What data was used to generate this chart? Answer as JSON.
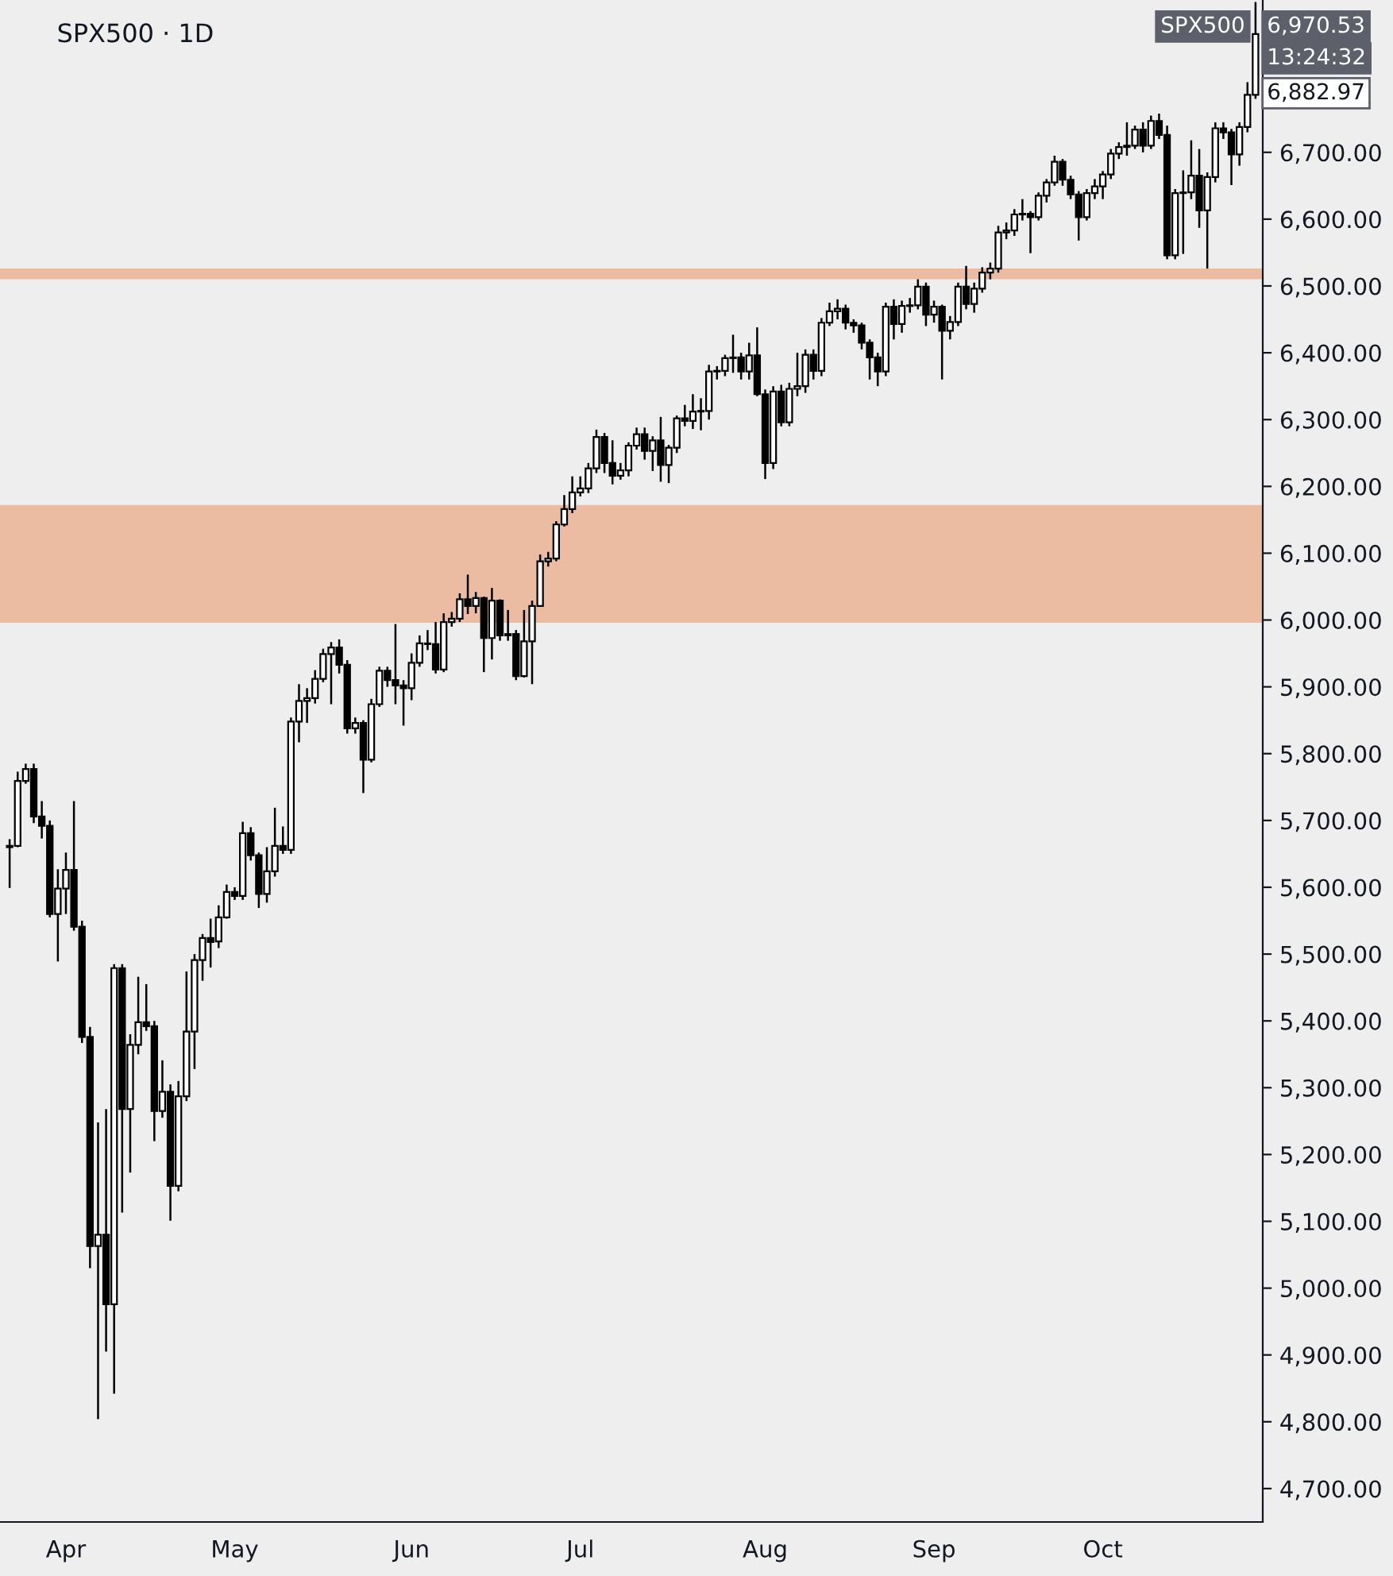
{
  "chart_data": {
    "type": "candlestick",
    "title": "SPX500 · 1D",
    "categories": [
      null,
      null,
      null,
      null,
      null,
      null,
      null,
      "Apr",
      null,
      null,
      null,
      null,
      null,
      null,
      null,
      null,
      null,
      null,
      null,
      null,
      null,
      null,
      null,
      null,
      null,
      null,
      null,
      null,
      "May",
      null,
      null,
      null,
      null,
      null,
      null,
      null,
      null,
      null,
      null,
      null,
      null,
      null,
      null,
      null,
      null,
      null,
      null,
      null,
      null,
      null,
      "Jun",
      null,
      null,
      null,
      null,
      null,
      null,
      null,
      null,
      null,
      null,
      null,
      null,
      null,
      null,
      null,
      null,
      null,
      null,
      null,
      null,
      "Jul",
      null,
      null,
      null,
      null,
      null,
      null,
      null,
      null,
      null,
      null,
      null,
      null,
      null,
      null,
      null,
      null,
      null,
      null,
      null,
      null,
      null,
      null,
      "Aug",
      null,
      null,
      null,
      null,
      null,
      null,
      null,
      null,
      null,
      null,
      null,
      null,
      null,
      null,
      null,
      null,
      null,
      null,
      null,
      null,
      "Sep",
      null,
      null,
      null,
      null,
      null,
      null,
      null,
      null,
      null,
      null,
      null,
      null,
      null,
      null,
      null,
      null,
      null,
      null,
      null,
      null,
      "Oct",
      null,
      null,
      null,
      null,
      null,
      null,
      null,
      null,
      null,
      null,
      null,
      null,
      null,
      null,
      null,
      null,
      null,
      null,
      null
    ],
    "ohlc": [
      [
        5660,
        5672,
        5599,
        5662
      ],
      [
        5662,
        5773,
        5660,
        5759
      ],
      [
        5759,
        5785,
        5755,
        5777
      ],
      [
        5777,
        5785,
        5696,
        5706
      ],
      [
        5706,
        5729,
        5673,
        5692
      ],
      [
        5692,
        5700,
        5555,
        5560
      ],
      [
        5560,
        5627,
        5489,
        5598
      ],
      [
        5598,
        5652,
        5560,
        5626
      ],
      [
        5626,
        5729,
        5535,
        5541
      ],
      [
        5541,
        5550,
        5367,
        5376
      ],
      [
        5376,
        5391,
        5030,
        5063
      ],
      [
        5063,
        5248,
        4804,
        5080
      ],
      [
        5080,
        5268,
        4905,
        4976
      ],
      [
        4976,
        5485,
        4842,
        5479
      ],
      [
        5479,
        5485,
        5113,
        5268
      ],
      [
        5268,
        5380,
        5173,
        5364
      ],
      [
        5364,
        5466,
        5350,
        5398
      ],
      [
        5398,
        5455,
        5385,
        5392
      ],
      [
        5392,
        5400,
        5220,
        5265
      ],
      [
        5265,
        5341,
        5255,
        5294
      ],
      [
        5294,
        5305,
        5101,
        5153
      ],
      [
        5153,
        5310,
        5145,
        5287
      ],
      [
        5287,
        5474,
        5280,
        5384
      ],
      [
        5384,
        5500,
        5328,
        5491
      ],
      [
        5491,
        5530,
        5460,
        5524
      ],
      [
        5524,
        5553,
        5480,
        5518
      ],
      [
        5519,
        5573,
        5509,
        5555
      ],
      [
        5555,
        5604,
        5553,
        5593
      ],
      [
        5593,
        5600,
        5581,
        5587
      ],
      [
        5587,
        5698,
        5581,
        5681
      ],
      [
        5681,
        5690,
        5640,
        5648
      ],
      [
        5648,
        5652,
        5569,
        5590
      ],
      [
        5590,
        5660,
        5577,
        5624
      ],
      [
        5624,
        5719,
        5616,
        5662
      ],
      [
        5662,
        5691,
        5650,
        5656
      ],
      [
        5656,
        5854,
        5650,
        5848
      ],
      [
        5848,
        5904,
        5817,
        5879
      ],
      [
        5879,
        5898,
        5846,
        5883
      ],
      [
        5883,
        5925,
        5875,
        5912
      ],
      [
        5912,
        5957,
        5907,
        5949
      ],
      [
        5949,
        5967,
        5874,
        5959
      ],
      [
        5959,
        5971,
        5920,
        5933
      ],
      [
        5933,
        5940,
        5830,
        5838
      ],
      [
        5838,
        5854,
        5830,
        5846
      ],
      [
        5846,
        5850,
        5741,
        5791
      ],
      [
        5791,
        5882,
        5787,
        5874
      ],
      [
        5874,
        5930,
        5870,
        5924
      ],
      [
        5924,
        5930,
        5900,
        5910
      ],
      [
        5910,
        5994,
        5874,
        5902
      ],
      [
        5902,
        5910,
        5842,
        5898
      ],
      [
        5898,
        5950,
        5880,
        5936
      ],
      [
        5936,
        5977,
        5930,
        5965
      ],
      [
        5965,
        5985,
        5955,
        5964
      ],
      [
        5964,
        5997,
        5920,
        5926
      ],
      [
        5926,
        6010,
        5922,
        5997
      ],
      [
        5997,
        6012,
        5990,
        6002
      ],
      [
        6002,
        6040,
        5997,
        6031
      ],
      [
        6031,
        6068,
        6009,
        6021
      ],
      [
        6021,
        6042,
        6010,
        6033
      ],
      [
        6033,
        6035,
        5922,
        5973
      ],
      [
        5973,
        6048,
        5941,
        6029
      ],
      [
        6029,
        6031,
        5969,
        5977
      ],
      [
        5977,
        6015,
        5969,
        5979
      ],
      [
        5979,
        5985,
        5910,
        5916
      ],
      [
        5916,
        6015,
        5914,
        5968
      ],
      [
        5968,
        6029,
        5904,
        6021
      ],
      [
        6021,
        6098,
        6021,
        6088
      ],
      [
        6088,
        6102,
        6080,
        6092
      ],
      [
        6092,
        6148,
        6088,
        6143
      ],
      [
        6143,
        6187,
        6140,
        6166
      ],
      [
        6166,
        6215,
        6160,
        6191
      ],
      [
        6191,
        6215,
        6185,
        6197
      ],
      [
        6197,
        6235,
        6190,
        6227
      ],
      [
        6227,
        6285,
        6220,
        6274
      ],
      [
        6274,
        6280,
        6220,
        6235
      ],
      [
        6235,
        6269,
        6203,
        6216
      ],
      [
        6216,
        6235,
        6210,
        6224
      ],
      [
        6224,
        6266,
        6215,
        6261
      ],
      [
        6261,
        6288,
        6255,
        6278
      ],
      [
        6278,
        6288,
        6240,
        6253
      ],
      [
        6253,
        6275,
        6223,
        6269
      ],
      [
        6269,
        6304,
        6207,
        6232
      ],
      [
        6232,
        6262,
        6205,
        6258
      ],
      [
        6258,
        6306,
        6250,
        6302
      ],
      [
        6302,
        6322,
        6290,
        6298
      ],
      [
        6298,
        6338,
        6286,
        6312
      ],
      [
        6312,
        6332,
        6284,
        6313
      ],
      [
        6313,
        6382,
        6300,
        6372
      ],
      [
        6372,
        6380,
        6360,
        6373
      ],
      [
        6373,
        6397,
        6365,
        6392
      ],
      [
        6392,
        6427,
        6370,
        6393
      ],
      [
        6393,
        6400,
        6360,
        6372
      ],
      [
        6372,
        6415,
        6360,
        6396
      ],
      [
        6396,
        6438,
        6335,
        6338
      ],
      [
        6338,
        6345,
        6211,
        6235
      ],
      [
        6235,
        6350,
        6226,
        6342
      ],
      [
        6342,
        6352,
        6290,
        6296
      ],
      [
        6296,
        6355,
        6290,
        6346
      ],
      [
        6346,
        6400,
        6335,
        6350
      ],
      [
        6350,
        6405,
        6340,
        6397
      ],
      [
        6397,
        6405,
        6360,
        6373
      ],
      [
        6373,
        6452,
        6365,
        6445
      ],
      [
        6445,
        6475,
        6440,
        6462
      ],
      [
        6462,
        6480,
        6450,
        6466
      ],
      [
        6466,
        6472,
        6435,
        6445
      ],
      [
        6445,
        6450,
        6430,
        6441
      ],
      [
        6441,
        6445,
        6405,
        6415
      ],
      [
        6415,
        6420,
        6360,
        6393
      ],
      [
        6393,
        6400,
        6350,
        6372
      ],
      [
        6372,
        6475,
        6365,
        6469
      ],
      [
        6469,
        6480,
        6420,
        6443
      ],
      [
        6443,
        6478,
        6430,
        6470
      ],
      [
        6470,
        6482,
        6460,
        6471
      ],
      [
        6471,
        6510,
        6465,
        6499
      ],
      [
        6499,
        6505,
        6440,
        6457
      ],
      [
        6457,
        6478,
        6445,
        6469
      ],
      [
        6469,
        6472,
        6360,
        6433
      ],
      [
        6433,
        6455,
        6420,
        6446
      ],
      [
        6446,
        6505,
        6440,
        6499
      ],
      [
        6499,
        6530,
        6465,
        6473
      ],
      [
        6473,
        6505,
        6460,
        6496
      ],
      [
        6496,
        6528,
        6490,
        6520
      ],
      [
        6520,
        6535,
        6510,
        6526
      ],
      [
        6526,
        6590,
        6520,
        6580
      ],
      [
        6580,
        6595,
        6570,
        6583
      ],
      [
        6583,
        6615,
        6575,
        6607
      ],
      [
        6607,
        6630,
        6598,
        6608
      ],
      [
        6608,
        6612,
        6549,
        6603
      ],
      [
        6603,
        6640,
        6598,
        6635
      ],
      [
        6635,
        6660,
        6625,
        6655
      ],
      [
        6655,
        6695,
        6650,
        6686
      ],
      [
        6686,
        6690,
        6650,
        6659
      ],
      [
        6659,
        6665,
        6630,
        6637
      ],
      [
        6637,
        6642,
        6568,
        6603
      ],
      [
        6603,
        6645,
        6598,
        6639
      ],
      [
        6639,
        6660,
        6630,
        6649
      ],
      [
        6649,
        6672,
        6630,
        6667
      ],
      [
        6667,
        6705,
        6660,
        6698
      ],
      [
        6698,
        6715,
        6690,
        6708
      ],
      [
        6708,
        6745,
        6695,
        6710
      ],
      [
        6710,
        6740,
        6705,
        6734
      ],
      [
        6734,
        6745,
        6700,
        6710
      ],
      [
        6710,
        6755,
        6705,
        6747
      ],
      [
        6747,
        6758,
        6720,
        6726
      ],
      [
        6726,
        6740,
        6540,
        6546
      ],
      [
        6546,
        6645,
        6540,
        6639
      ],
      [
        6639,
        6673,
        6548,
        6640
      ],
      [
        6640,
        6718,
        6630,
        6665
      ],
      [
        6665,
        6705,
        6587,
        6613
      ],
      [
        6613,
        6670,
        6526,
        6663
      ],
      [
        6663,
        6745,
        6655,
        6736
      ],
      [
        6736,
        6745,
        6720,
        6730
      ],
      [
        6730,
        6735,
        6651,
        6697
      ],
      [
        6697,
        6745,
        6680,
        6738
      ],
      [
        6738,
        6805,
        6730,
        6786
      ],
      [
        6786,
        6925,
        6780,
        6877
      ]
    ],
    "ylim": [
      4650,
      6928
    ],
    "yticks": [
      {
        "value": 4700,
        "label": "4,700.00"
      },
      {
        "value": 4800,
        "label": "4,800.00"
      },
      {
        "value": 4900,
        "label": "4,900.00"
      },
      {
        "value": 5000,
        "label": "5,000.00"
      },
      {
        "value": 5100,
        "label": "5,100.00"
      },
      {
        "value": 5200,
        "label": "5,200.00"
      },
      {
        "value": 5300,
        "label": "5,300.00"
      },
      {
        "value": 5400,
        "label": "5,400.00"
      },
      {
        "value": 5500,
        "label": "5,500.00"
      },
      {
        "value": 5600,
        "label": "5,600.00"
      },
      {
        "value": 5700,
        "label": "5,700.00"
      },
      {
        "value": 5800,
        "label": "5,800.00"
      },
      {
        "value": 5900,
        "label": "5,900.00"
      },
      {
        "value": 6000,
        "label": "6,000.00"
      },
      {
        "value": 6100,
        "label": "6,100.00"
      },
      {
        "value": 6200,
        "label": "6,200.00"
      },
      {
        "value": 6300,
        "label": "6,300.00"
      },
      {
        "value": 6400,
        "label": "6,400.00"
      },
      {
        "value": 6500,
        "label": "6,500.00"
      },
      {
        "value": 6600,
        "label": "6,600.00"
      },
      {
        "value": 6700,
        "label": "6,700.00"
      }
    ],
    "bands": [
      {
        "axis": "y",
        "from": 5996,
        "to": 6172,
        "label": null,
        "color": "#ebbca2"
      },
      {
        "axis": "y",
        "from": 6510,
        "to": 6526,
        "label": null,
        "color": "#ebbca2"
      }
    ],
    "annotations": [
      "SPX500",
      "6,970.53",
      "13:24:32",
      "6,882.97"
    ],
    "grid": false,
    "legend": false
  }
}
